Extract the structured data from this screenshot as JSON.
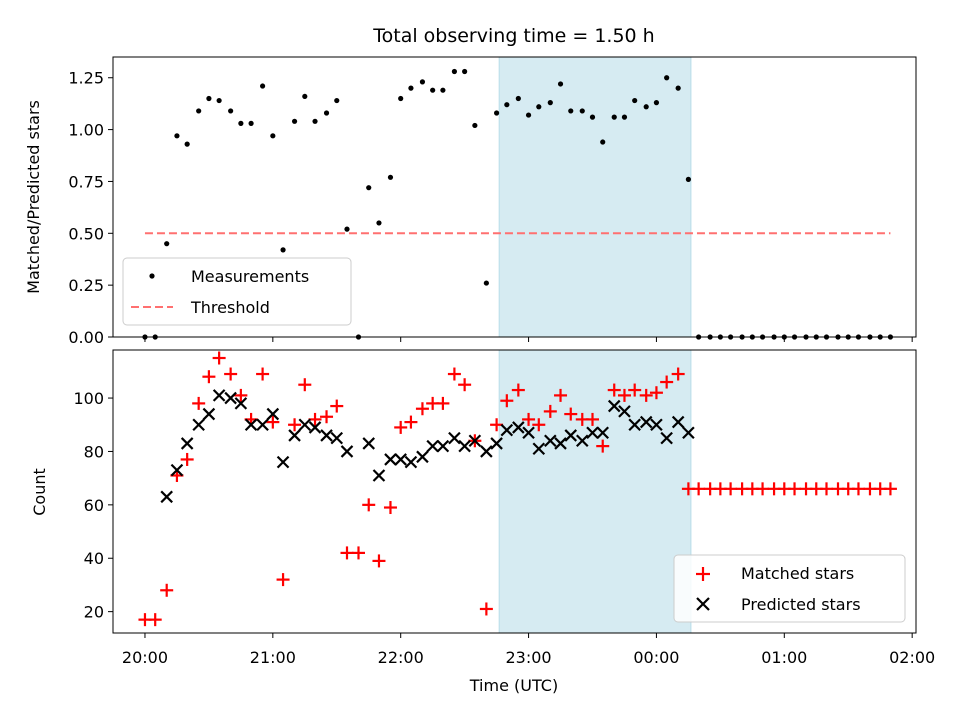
{
  "chart_data": [
    {
      "type": "scatter",
      "title": "Total observing time = 1.50 h",
      "ylabel": "Matched/Predicted stars",
      "ylim": [
        0,
        1.35
      ],
      "yticks": [
        0.0,
        0.25,
        0.5,
        0.75,
        1.0,
        1.25
      ],
      "ytick_labels": [
        "0.00",
        "0.25",
        "0.50",
        "0.75",
        "1.00",
        "1.25"
      ],
      "xlim": [
        19.75,
        26.03
      ],
      "highlight_span": [
        22.77,
        24.27
      ],
      "legend_position": "lower-left",
      "series": [
        {
          "name": "Measurements",
          "marker": "dot",
          "color": "#000000",
          "x": [
            20.0,
            20.08,
            20.17,
            20.25,
            20.33,
            20.42,
            20.5,
            20.58,
            20.67,
            20.75,
            20.83,
            20.92,
            21.0,
            21.08,
            21.17,
            21.25,
            21.33,
            21.42,
            21.5,
            21.58,
            21.67,
            21.75,
            21.83,
            21.92,
            22.0,
            22.08,
            22.17,
            22.25,
            22.33,
            22.42,
            22.5,
            22.58,
            22.67,
            22.75,
            22.83,
            22.92,
            23.0,
            23.08,
            23.17,
            23.25,
            23.33,
            23.42,
            23.5,
            23.58,
            23.67,
            23.75,
            23.83,
            23.92,
            24.0,
            24.08,
            24.17,
            24.25,
            24.33,
            24.42,
            24.5,
            24.58,
            24.67,
            24.75,
            24.83,
            24.92,
            25.0,
            25.08,
            25.17,
            25.25,
            25.33,
            25.42,
            25.5,
            25.58,
            25.67,
            25.75,
            25.83
          ],
          "y": [
            0.0,
            0.0,
            0.45,
            0.97,
            0.93,
            1.09,
            1.15,
            1.14,
            1.09,
            1.03,
            1.03,
            1.21,
            0.97,
            0.42,
            1.04,
            1.16,
            1.04,
            1.08,
            1.14,
            0.52,
            0.0,
            0.72,
            0.55,
            0.77,
            1.15,
            1.2,
            1.23,
            1.19,
            1.19,
            1.28,
            1.28,
            1.02,
            0.26,
            1.08,
            1.12,
            1.15,
            1.07,
            1.11,
            1.13,
            1.22,
            1.09,
            1.09,
            1.06,
            0.94,
            1.06,
            1.06,
            1.14,
            1.11,
            1.13,
            1.25,
            1.2,
            0.76,
            0.0,
            0.0,
            0.0,
            0.0,
            0.0,
            0.0,
            0.0,
            0.0,
            0.0,
            0.0,
            0.0,
            0.0,
            0.0,
            0.0,
            0.0,
            0.0,
            0.0,
            0.0,
            0.0
          ]
        },
        {
          "name": "Threshold",
          "marker": "dashed-line",
          "color": "#ff7070",
          "x": [
            20.0,
            25.83
          ],
          "y": [
            0.5,
            0.5
          ]
        }
      ]
    },
    {
      "type": "scatter",
      "xlabel": "Time (UTC)",
      "ylabel": "Count",
      "ylim": [
        12,
        118
      ],
      "yticks": [
        20,
        40,
        60,
        80,
        100
      ],
      "ytick_labels": [
        "20",
        "40",
        "60",
        "80",
        "100"
      ],
      "xlim": [
        19.75,
        26.03
      ],
      "xticks": [
        20,
        21,
        22,
        23,
        24,
        25,
        26
      ],
      "xtick_labels": [
        "20:00",
        "21:00",
        "22:00",
        "23:00",
        "00:00",
        "01:00",
        "02:00"
      ],
      "highlight_span": [
        22.77,
        24.27
      ],
      "legend_position": "lower-right",
      "series": [
        {
          "name": "Matched stars",
          "marker": "plus",
          "color": "#ff0000",
          "x": [
            20.0,
            20.08,
            20.17,
            20.25,
            20.33,
            20.42,
            20.5,
            20.58,
            20.67,
            20.75,
            20.83,
            20.92,
            21.0,
            21.08,
            21.17,
            21.25,
            21.33,
            21.42,
            21.5,
            21.58,
            21.67,
            21.75,
            21.83,
            21.92,
            22.0,
            22.08,
            22.17,
            22.25,
            22.33,
            22.42,
            22.5,
            22.58,
            22.67,
            22.75,
            22.83,
            22.92,
            23.0,
            23.08,
            23.17,
            23.25,
            23.33,
            23.42,
            23.5,
            23.58,
            23.67,
            23.75,
            23.83,
            23.92,
            24.0,
            24.08,
            24.17,
            24.25,
            24.33,
            24.42,
            24.5,
            24.58,
            24.67,
            24.75,
            24.83,
            24.92,
            25.0,
            25.08,
            25.17,
            25.25,
            25.33,
            25.42,
            25.5,
            25.58,
            25.67,
            25.75,
            25.83
          ],
          "y": [
            17,
            17,
            28,
            71,
            77,
            98,
            108,
            115,
            109,
            101,
            92,
            109,
            91,
            32,
            90,
            105,
            92,
            93,
            97,
            42,
            42,
            60,
            39,
            59,
            89,
            91,
            96,
            98,
            98,
            109,
            105,
            84,
            21,
            90,
            99,
            103,
            92,
            90,
            95,
            101,
            94,
            92,
            92,
            82,
            103,
            101,
            103,
            101,
            102,
            106,
            109,
            66,
            66,
            66,
            66,
            66,
            66,
            66,
            66,
            66,
            66,
            66,
            66,
            66,
            66,
            66,
            66,
            66,
            66,
            66,
            66
          ]
        },
        {
          "name": "Predicted stars",
          "marker": "x",
          "color": "#000000",
          "x": [
            20.17,
            20.25,
            20.33,
            20.42,
            20.5,
            20.58,
            20.67,
            20.75,
            20.83,
            20.92,
            21.0,
            21.08,
            21.17,
            21.25,
            21.33,
            21.42,
            21.5,
            21.58,
            21.75,
            21.83,
            21.92,
            22.0,
            22.08,
            22.17,
            22.25,
            22.33,
            22.42,
            22.5,
            22.58,
            22.67,
            22.75,
            22.83,
            22.92,
            23.0,
            23.08,
            23.17,
            23.25,
            23.33,
            23.42,
            23.5,
            23.58,
            23.67,
            23.75,
            23.83,
            23.92,
            24.0,
            24.08,
            24.17,
            24.25
          ],
          "y": [
            63,
            73,
            83,
            90,
            94,
            101,
            100,
            98,
            90,
            90,
            94,
            76,
            86,
            90,
            89,
            86,
            85,
            80,
            83,
            71,
            77,
            77,
            76,
            78,
            82,
            82,
            85,
            82,
            84,
            80,
            83,
            88,
            89,
            87,
            81,
            84,
            83,
            86,
            84,
            87,
            87,
            97,
            95,
            90,
            91,
            90,
            85,
            91,
            87
          ]
        }
      ]
    }
  ]
}
